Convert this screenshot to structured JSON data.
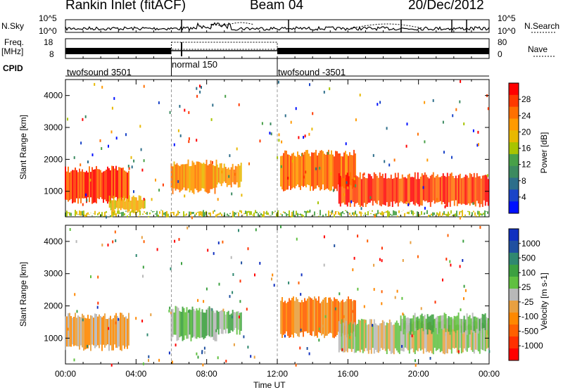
{
  "header": {
    "title": "Rankin Inlet (fitACF)",
    "beam": "Beam 04",
    "date": "20/Dec/2012"
  },
  "strip_labels": {
    "nsky": "N.Sky",
    "nsearch": "N.Search",
    "freq_top": "Freq.",
    "freq_unit": "[MHz]",
    "nave": "Nave",
    "cpid": "CPID",
    "y_1e5": "10^5",
    "y_1e0": "10^0",
    "freq_18": "18",
    "freq_8": "8",
    "nave_80": "80",
    "nave_0": "0"
  },
  "cpid_segments": [
    {
      "label": "twofsound 3501",
      "start_h": 0,
      "end_h": 6
    },
    {
      "label": "normal 150",
      "start_h": 6,
      "end_h": 12
    },
    {
      "label": "twofsound -3501",
      "start_h": 12,
      "end_h": 24
    }
  ],
  "colorbars": {
    "power": {
      "label": "Power [dB]",
      "ticks": [
        "28",
        "24",
        "20",
        "16",
        "12",
        "8",
        "4"
      ],
      "colors": [
        "#ff0000",
        "#ff3a00",
        "#ff7000",
        "#ff9a00",
        "#e8b800",
        "#a8c400",
        "#48a048",
        "#3c8a60",
        "#2d6e8a",
        "#1a44c8",
        "#0010ff"
      ]
    },
    "velocity": {
      "label": "Velocity [m s-1]",
      "ticks": [
        "1000",
        "500",
        "100",
        "25",
        "-25",
        "-100",
        "-500",
        "-1000"
      ],
      "colors": [
        "#1030c0",
        "#2050a0",
        "#308870",
        "#3ca040",
        "#60c040",
        "#b8b8b8",
        "#e8a040",
        "#ff8800",
        "#ff6000",
        "#ff3000",
        "#ff0000"
      ]
    }
  },
  "panels": {
    "ylabel": "Slant Range [km]",
    "yticks": [
      "4000",
      "3000",
      "2000",
      "1000"
    ],
    "xticks": [
      "00:00",
      "04:00",
      "08:00",
      "12:00",
      "16:00",
      "20:00",
      "00:00"
    ],
    "xlabel": "Time UT"
  },
  "chart_data": [
    {
      "type": "heatmap",
      "title": "Power",
      "xlabel": "Time UT",
      "ylabel": "Slant Range [km]",
      "xlim": [
        0,
        24
      ],
      "ylim": [
        200,
        4500
      ],
      "colorbar": "Power [dB]",
      "clim": [
        0,
        30
      ],
      "regions": [
        {
          "t0": 0.0,
          "t1": 3.6,
          "r0": 600,
          "r1": 1800,
          "value": 26
        },
        {
          "t0": 2.5,
          "t1": 4.5,
          "r0": 300,
          "r1": 900,
          "value": 18
        },
        {
          "t0": 6.0,
          "t1": 8.6,
          "r0": 900,
          "r1": 2000,
          "value": 22
        },
        {
          "t0": 8.6,
          "t1": 10.0,
          "r0": 1100,
          "r1": 1900,
          "value": 20
        },
        {
          "t0": 12.2,
          "t1": 16.5,
          "r0": 1000,
          "r1": 2300,
          "value": 24
        },
        {
          "t0": 15.5,
          "t1": 24.0,
          "r0": 500,
          "r1": 1600,
          "value": 27
        },
        {
          "t0": 0.0,
          "t1": 24.0,
          "r0": 200,
          "r1": 400,
          "value": 14
        }
      ]
    },
    {
      "type": "heatmap",
      "title": "Velocity",
      "xlabel": "Time UT",
      "ylabel": "Slant Range [km]",
      "xlim": [
        0,
        24
      ],
      "ylim": [
        200,
        4500
      ],
      "colorbar": "Velocity [m s-1]",
      "clim": [
        -1000,
        1000
      ],
      "regions": [
        {
          "t0": 0.0,
          "t1": 3.6,
          "r0": 600,
          "r1": 1800,
          "value": -100
        },
        {
          "t0": 6.0,
          "t1": 8.6,
          "r0": 900,
          "r1": 2000,
          "value": 200
        },
        {
          "t0": 8.6,
          "t1": 10.0,
          "r0": 1100,
          "r1": 1900,
          "value": 150
        },
        {
          "t0": 12.2,
          "t1": 16.5,
          "r0": 1000,
          "r1": 2300,
          "value": -400
        },
        {
          "t0": 15.5,
          "t1": 24.0,
          "r0": 500,
          "r1": 1600,
          "value": -60
        },
        {
          "t0": 19.0,
          "t1": 24.0,
          "r0": 1100,
          "r1": 1800,
          "value": 300
        }
      ]
    }
  ]
}
